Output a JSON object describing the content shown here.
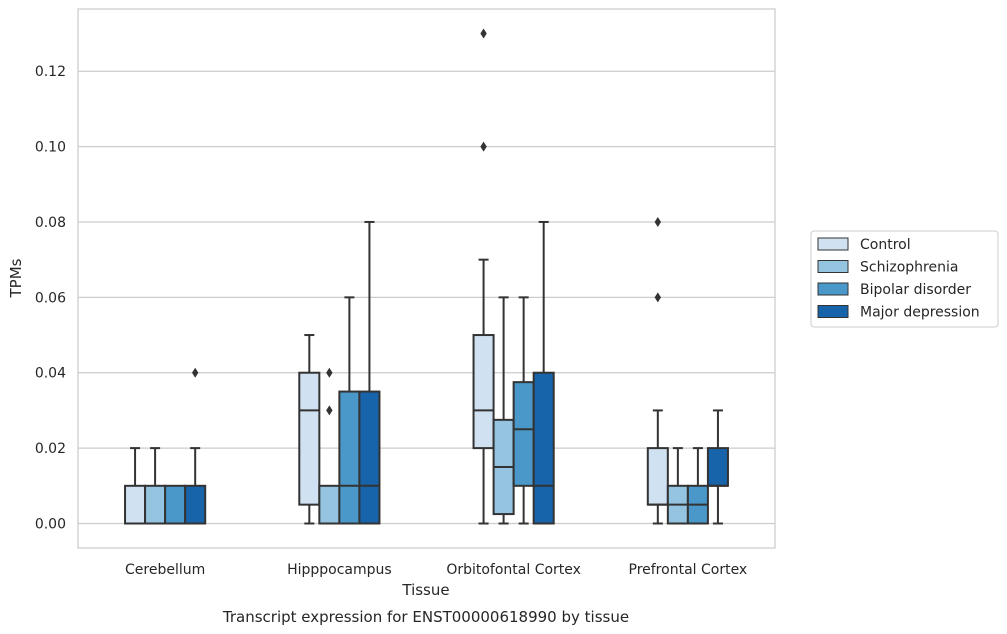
{
  "chart_data": {
    "type": "box",
    "title": "Transcript expression for ENST00000618990 by tissue",
    "xlabel": "Tissue",
    "ylabel": "TPMs",
    "ylim": [
      -0.0065,
      0.1365
    ],
    "yticks": [
      "0.00",
      "0.02",
      "0.04",
      "0.06",
      "0.08",
      "0.10",
      "0.12"
    ],
    "grid": true,
    "legend_position": "right",
    "categories": [
      "Cerebellum",
      "Hipppocampus",
      "Orbitofontal Cortex",
      "Prefrontal Cortex"
    ],
    "series": [
      {
        "name": "Control",
        "color": "#d0e1f2",
        "boxes": [
          {
            "whislo": 0.0,
            "q1": 0.0,
            "med": 0.0,
            "q3": 0.01,
            "whishi": 0.02,
            "fliers": []
          },
          {
            "whislo": 0.0,
            "q1": 0.005,
            "med": 0.03,
            "q3": 0.04,
            "whishi": 0.05,
            "fliers": []
          },
          {
            "whislo": 0.0,
            "q1": 0.02,
            "med": 0.03,
            "q3": 0.05,
            "whishi": 0.07,
            "fliers": [
              0.1,
              0.13
            ]
          },
          {
            "whislo": 0.0,
            "q1": 0.005,
            "med": 0.005,
            "q3": 0.02,
            "whishi": 0.03,
            "fliers": [
              0.06,
              0.08
            ]
          }
        ]
      },
      {
        "name": "Schizophrenia",
        "color": "#94c4df",
        "boxes": [
          {
            "whislo": 0.0,
            "q1": 0.0,
            "med": 0.0,
            "q3": 0.01,
            "whishi": 0.02,
            "fliers": []
          },
          {
            "whislo": 0.0,
            "q1": 0.0,
            "med": 0.0,
            "q3": 0.01,
            "whishi": 0.01,
            "fliers": [
              0.03,
              0.04
            ]
          },
          {
            "whislo": 0.0,
            "q1": 0.0025,
            "med": 0.015,
            "q3": 0.0275,
            "whishi": 0.06,
            "fliers": []
          },
          {
            "whislo": 0.0,
            "q1": 0.0,
            "med": 0.005,
            "q3": 0.01,
            "whishi": 0.02,
            "fliers": []
          }
        ]
      },
      {
        "name": "Bipolar disorder",
        "color": "#4a98c9",
        "boxes": [
          {
            "whislo": 0.0,
            "q1": 0.0,
            "med": 0.0,
            "q3": 0.01,
            "whishi": 0.01,
            "fliers": []
          },
          {
            "whislo": 0.0,
            "q1": 0.0,
            "med": 0.01,
            "q3": 0.035,
            "whishi": 0.06,
            "fliers": []
          },
          {
            "whislo": 0.0,
            "q1": 0.01,
            "med": 0.025,
            "q3": 0.0375,
            "whishi": 0.06,
            "fliers": []
          },
          {
            "whislo": 0.0,
            "q1": 0.0,
            "med": 0.005,
            "q3": 0.01,
            "whishi": 0.02,
            "fliers": []
          }
        ]
      },
      {
        "name": "Major depression",
        "color": "#1764ab",
        "boxes": [
          {
            "whislo": 0.0,
            "q1": 0.0,
            "med": 0.0,
            "q3": 0.01,
            "whishi": 0.02,
            "fliers": [
              0.04
            ]
          },
          {
            "whislo": 0.0,
            "q1": 0.0,
            "med": 0.01,
            "q3": 0.035,
            "whishi": 0.08,
            "fliers": []
          },
          {
            "whislo": 0.0,
            "q1": 0.0,
            "med": 0.01,
            "q3": 0.04,
            "whishi": 0.08,
            "fliers": []
          },
          {
            "whislo": 0.0,
            "q1": 0.01,
            "med": 0.01,
            "q3": 0.02,
            "whishi": 0.03,
            "fliers": []
          }
        ]
      }
    ]
  }
}
